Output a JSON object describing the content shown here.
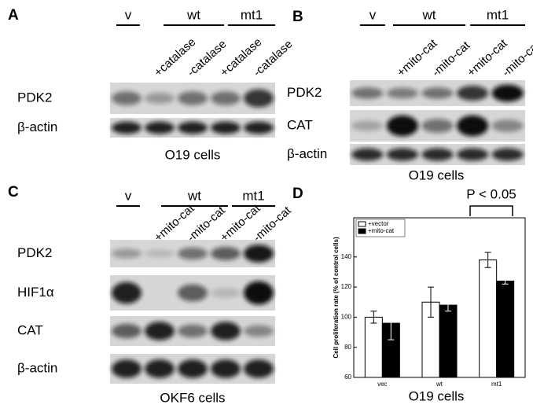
{
  "panels": [
    {
      "label": "A",
      "groups": [
        "v",
        "wt",
        "mt1"
      ],
      "lanes": [
        "+catalase",
        "-catalase",
        "+catalase",
        "-catalase"
      ],
      "rows": [
        "PDK2",
        "β-actin"
      ],
      "caption": "O19 cells"
    },
    {
      "label": "B",
      "groups": [
        "v",
        "wt",
        "mt1"
      ],
      "lanes": [
        "+mito-cat",
        "-mito-cat",
        "+mito-cat",
        "-mito-cat"
      ],
      "rows": [
        "PDK2",
        "CAT",
        "β-actin"
      ],
      "caption": "O19 cells"
    },
    {
      "label": "C",
      "groups": [
        "v",
        "wt",
        "mt1"
      ],
      "lanes": [
        "+mito-cat",
        "-mito-cat",
        "+mito-cat",
        "-mito-cat"
      ],
      "rows": [
        "PDK2",
        "HIF1α",
        "CAT",
        "β-actin"
      ],
      "caption": "OKF6 cells"
    }
  ],
  "chart_data": {
    "type": "bar",
    "label": "D",
    "ylabel": "Cell proliferation rate (% of control cells)",
    "categories": [
      "vec",
      "wt",
      "mt1"
    ],
    "series": [
      {
        "name": "+vector",
        "color": "#ffffff",
        "values": [
          100,
          110,
          138
        ],
        "errors": [
          4,
          10,
          5
        ]
      },
      {
        "name": "+mito-cat",
        "color": "#000000",
        "values": [
          96,
          108,
          124
        ],
        "errors": [
          11,
          4,
          2
        ]
      }
    ],
    "ylim": [
      60,
      166
    ],
    "yticks": [
      60,
      80,
      100,
      120,
      140
    ],
    "annotation": "P < 0.05",
    "caption": "O19 cells"
  }
}
